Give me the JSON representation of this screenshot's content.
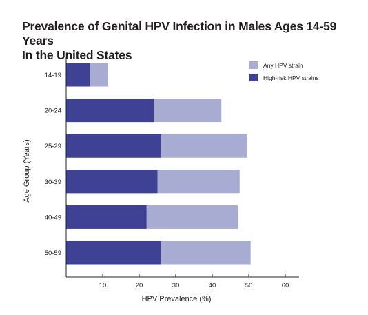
{
  "chart_data": {
    "type": "bar",
    "orientation": "horizontal",
    "title_lines": [
      "Prevalence of Genital HPV Infection in Males Ages 14-59 Years",
      "In the United States"
    ],
    "xlabel": "HPV Prevalence (%)",
    "ylabel": "Age Group (Years)",
    "categories": [
      "14-19",
      "20-24",
      "25-29",
      "30-39",
      "40-49",
      "50-59"
    ],
    "series": [
      {
        "name": "Any HPV strain",
        "color": "#a8acd3",
        "values": [
          11.5,
          42.5,
          49.5,
          47.5,
          47.0,
          50.5
        ]
      },
      {
        "name": "High-risk HPV strains",
        "color": "#3f4294",
        "values": [
          6.5,
          24.0,
          26.0,
          25.0,
          22.0,
          26.0
        ]
      }
    ],
    "xlim": [
      0,
      63
    ],
    "xticks": [
      10,
      20,
      30,
      40,
      50,
      60
    ],
    "grid": false,
    "legend_position": "top-right",
    "overlay": true
  }
}
